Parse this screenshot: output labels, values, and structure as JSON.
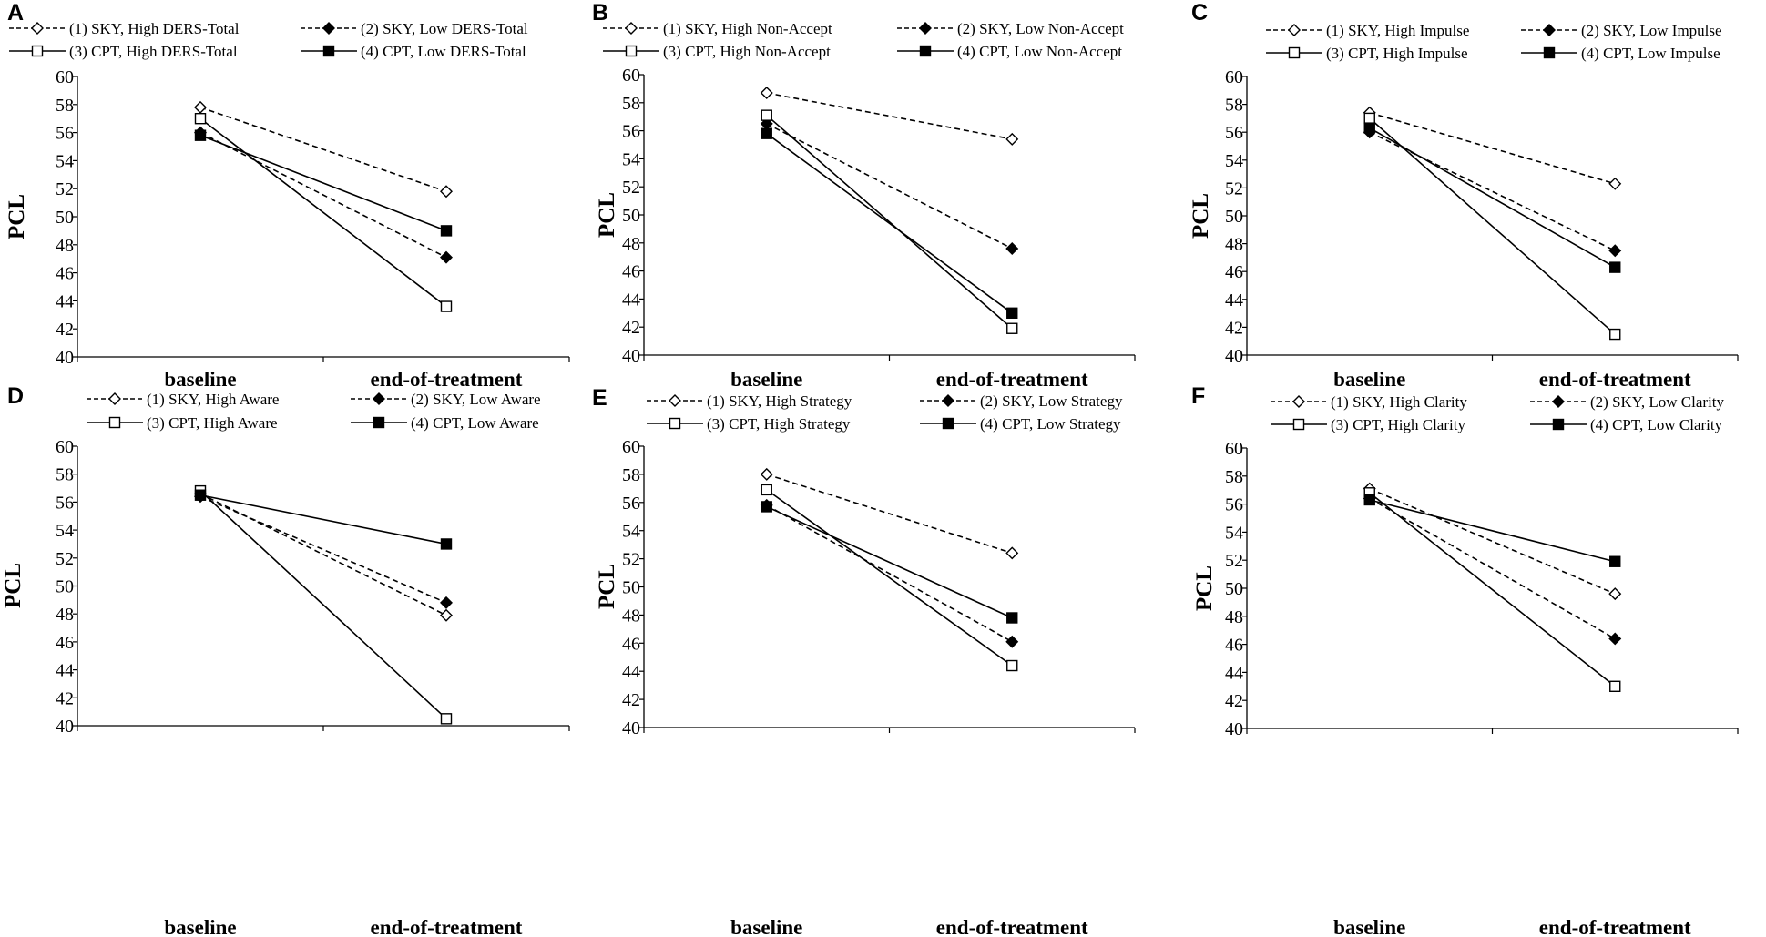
{
  "figure": {
    "styles": {
      "1": {
        "dash": true,
        "marker": "diamond-open"
      },
      "2": {
        "dash": true,
        "marker": "diamond-filled"
      },
      "3": {
        "dash": false,
        "marker": "square-open"
      },
      "4": {
        "dash": false,
        "marker": "square-filled"
      }
    }
  },
  "chart_data": [
    {
      "panel": "A",
      "type": "line",
      "ylabel": "PCL",
      "ylim": [
        40,
        60
      ],
      "yticks": [
        40,
        42,
        44,
        46,
        48,
        50,
        52,
        54,
        56,
        58,
        60
      ],
      "categories": [
        "baseline",
        "end-of-treatment"
      ],
      "series": [
        {
          "id": "1",
          "name": "(1) SKY, High DERS-Total",
          "values": [
            57.8,
            51.8
          ]
        },
        {
          "id": "2",
          "name": "(2) SKY, Low DERS-Total",
          "values": [
            56.0,
            47.1
          ]
        },
        {
          "id": "3",
          "name": "(3) CPT, High DERS-Total",
          "values": [
            57.0,
            43.6
          ]
        },
        {
          "id": "4",
          "name": "(4) CPT, Low DERS-Total",
          "values": [
            55.8,
            49.0
          ]
        }
      ]
    },
    {
      "panel": "B",
      "type": "line",
      "ylabel": "PCL",
      "ylim": [
        40,
        60
      ],
      "yticks": [
        40,
        42,
        44,
        46,
        48,
        50,
        52,
        54,
        56,
        58,
        60
      ],
      "categories": [
        "baseline",
        "end-of-treatment"
      ],
      "series": [
        {
          "id": "1",
          "name": "(1) SKY, High Non-Accept",
          "values": [
            58.7,
            55.4
          ]
        },
        {
          "id": "2",
          "name": "(2) SKY, Low Non-Accept",
          "values": [
            56.5,
            47.6
          ]
        },
        {
          "id": "3",
          "name": "(3) CPT, High Non-Accept",
          "values": [
            57.1,
            41.9
          ]
        },
        {
          "id": "4",
          "name": "(4) CPT, Low Non-Accept",
          "values": [
            55.8,
            43.0
          ]
        }
      ]
    },
    {
      "panel": "C",
      "type": "line",
      "ylabel": "PCL",
      "ylim": [
        40,
        60
      ],
      "yticks": [
        40,
        42,
        44,
        46,
        48,
        50,
        52,
        54,
        56,
        58,
        60
      ],
      "categories": [
        "baseline",
        "end-of-treatment"
      ],
      "series": [
        {
          "id": "1",
          "name": "(1) SKY, High Impulse",
          "values": [
            57.4,
            52.3
          ]
        },
        {
          "id": "2",
          "name": "(2) SKY, Low Impulse",
          "values": [
            56.0,
            47.5
          ]
        },
        {
          "id": "3",
          "name": "(3) CPT, High Impulse",
          "values": [
            57.0,
            41.5
          ]
        },
        {
          "id": "4",
          "name": "(4) CPT, Low Impulse",
          "values": [
            56.3,
            46.3
          ]
        }
      ]
    },
    {
      "panel": "D",
      "type": "line",
      "ylabel": "PCL",
      "ylim": [
        40,
        60
      ],
      "yticks": [
        40,
        42,
        44,
        46,
        48,
        50,
        52,
        54,
        56,
        58,
        60
      ],
      "categories": [
        "baseline",
        "end-of-treatment"
      ],
      "series": [
        {
          "id": "1",
          "name": "(1) SKY, High Aware",
          "values": [
            56.6,
            47.9
          ]
        },
        {
          "id": "2",
          "name": "(2) SKY, Low Aware",
          "values": [
            56.4,
            48.8
          ]
        },
        {
          "id": "3",
          "name": "(3) CPT, High Aware",
          "values": [
            56.8,
            40.5
          ]
        },
        {
          "id": "4",
          "name": "(4) CPT, Low Aware",
          "values": [
            56.5,
            53.0
          ]
        }
      ]
    },
    {
      "panel": "E",
      "type": "line",
      "ylabel": "PCL",
      "ylim": [
        40,
        60
      ],
      "yticks": [
        40,
        42,
        44,
        46,
        48,
        50,
        52,
        54,
        56,
        58,
        60
      ],
      "categories": [
        "baseline",
        "end-of-treatment"
      ],
      "series": [
        {
          "id": "1",
          "name": "(1) SKY, High Strategy",
          "values": [
            58.0,
            52.4
          ]
        },
        {
          "id": "2",
          "name": "(2) SKY, Low Strategy",
          "values": [
            55.8,
            46.1
          ]
        },
        {
          "id": "3",
          "name": "(3) CPT, High Strategy",
          "values": [
            56.9,
            44.4
          ]
        },
        {
          "id": "4",
          "name": "(4) CPT, Low Strategy",
          "values": [
            55.7,
            47.8
          ]
        }
      ]
    },
    {
      "panel": "F",
      "type": "line",
      "ylabel": "PCL",
      "ylim": [
        40,
        60
      ],
      "yticks": [
        40,
        42,
        44,
        46,
        48,
        50,
        52,
        54,
        56,
        58,
        60
      ],
      "categories": [
        "baseline",
        "end-of-treatment"
      ],
      "series": [
        {
          "id": "1",
          "name": "(1) SKY, High Clarity",
          "values": [
            57.1,
            49.6
          ]
        },
        {
          "id": "2",
          "name": "(2) SKY, Low Clarity",
          "values": [
            56.4,
            46.4
          ]
        },
        {
          "id": "3",
          "name": "(3) CPT, High Clarity",
          "values": [
            56.8,
            43.0
          ]
        },
        {
          "id": "4",
          "name": "(4) CPT, Low Clarity",
          "values": [
            56.3,
            51.9
          ]
        }
      ]
    }
  ]
}
